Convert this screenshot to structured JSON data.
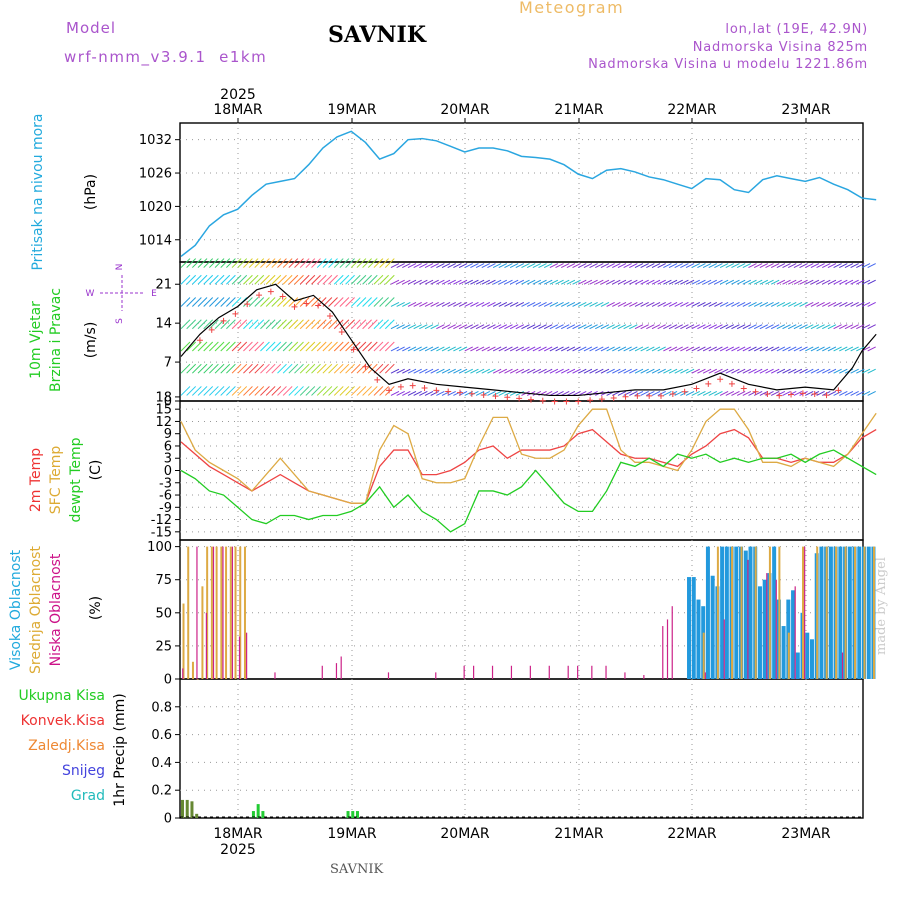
{
  "header": {
    "model_label": "Model",
    "model_name": "wrf-nmm_v3.9.1  e1km",
    "station": "SAVNIK",
    "title": "Meteogram",
    "lonlat": "lon,lat (19E, 42.9N)",
    "altitude": "Nadmorska Visina 825m",
    "model_altitude": "Nadmorska Visina u modelu 1221.86m",
    "footer_station": "SAVNIK",
    "credit": "made by Angel"
  },
  "colors": {
    "pressure": "#2aa6e0",
    "label_cyan": "#22aadd",
    "label_green": "#22cc22",
    "label_red": "#ee3333",
    "label_orange": "#ee8833",
    "label_gold": "#ddaa33",
    "label_magenta": "#cc1188",
    "label_purple": "#9933cc",
    "label_blue": "#4444dd",
    "label_teal": "#22bbbb",
    "credit": "#cccccc"
  },
  "time_axis": {
    "year": "2025",
    "days": [
      "18MAR",
      "19MAR",
      "20MAR",
      "21MAR",
      "22MAR",
      "23MAR"
    ]
  },
  "chart_data": [
    {
      "id": "pressure",
      "type": "line",
      "ylabel": "Pritisak na nivou mora",
      "unit": "(hPa)",
      "ylim": [
        1010,
        1035
      ],
      "yticks": [
        1014,
        1020,
        1026,
        1032
      ],
      "grid": true,
      "x_hours": [
        0,
        3,
        6,
        9,
        12,
        15,
        18,
        21,
        24,
        27,
        30,
        33,
        36,
        39,
        42,
        45,
        48,
        51,
        54,
        57,
        60,
        63,
        66,
        69,
        72,
        75,
        78,
        81,
        84,
        87,
        90,
        93,
        96,
        99,
        102,
        105,
        108,
        111,
        114,
        117,
        120,
        123,
        126,
        129,
        132,
        135,
        138,
        141,
        144,
        147
      ],
      "values": [
        1011,
        1013,
        1016.5,
        1018.5,
        1019.5,
        1022,
        1024,
        1024.5,
        1025,
        1027.5,
        1030.5,
        1032.5,
        1033.5,
        1031.5,
        1028.5,
        1029.5,
        1032,
        1032.2,
        1031.8,
        1030.8,
        1029.8,
        1030.5,
        1030.5,
        1030,
        1029,
        1028.8,
        1028.5,
        1027.5,
        1025.8,
        1025,
        1026.5,
        1026.8,
        1026.2,
        1025.3,
        1024.8,
        1024,
        1023.2,
        1025,
        1024.8,
        1023,
        1022.5,
        1024.8,
        1025.5,
        1025,
        1024.5,
        1025.2,
        1024,
        1023,
        1021.5,
        1021.2
      ]
    },
    {
      "id": "wind",
      "type": "line",
      "ylabel_1": "10m Vjetar",
      "ylabel_2": "Brzina i Pravac",
      "unit": "(m/s)",
      "compass": {
        "n": "N",
        "s": "S",
        "e": "E",
        "w": "W"
      },
      "ylim": [
        0,
        25
      ],
      "yticks": [
        0,
        7,
        14,
        21
      ],
      "grid": true,
      "series": [
        {
          "role": "wind_speed",
          "x_hours": [
            0,
            4,
            8,
            12,
            16,
            20,
            24,
            28,
            32,
            36,
            40,
            44,
            48,
            54,
            60,
            66,
            72,
            78,
            84,
            90,
            96,
            102,
            108,
            114,
            120,
            126,
            132,
            138,
            142,
            144,
            147
          ],
          "values": [
            8,
            12,
            15,
            17,
            20,
            21,
            18,
            19,
            16,
            11,
            6,
            3,
            4,
            3,
            2.5,
            2,
            1.5,
            1,
            1,
            1.5,
            2,
            2,
            3,
            5,
            3,
            2,
            2.5,
            2,
            6,
            9,
            12
          ]
        }
      ]
    },
    {
      "id": "temperature",
      "type": "line",
      "ylabel_1": "2m Temp",
      "ylabel_2": "SFC Temp",
      "ylabel_3": "dewpt Temp",
      "unit": "(C)",
      "ylim": [
        -17,
        17
      ],
      "yticks": [
        -15,
        -12,
        -9,
        -6,
        -3,
        0,
        3,
        6,
        9,
        12,
        15,
        18
      ],
      "grid": true,
      "series": [
        {
          "role": "2m_temp",
          "x_hours": [
            0,
            3,
            6,
            9,
            12,
            15,
            18,
            21,
            24,
            27,
            30,
            33,
            36,
            39,
            42,
            45,
            48,
            51,
            54,
            57,
            60,
            63,
            66,
            69,
            72,
            75,
            78,
            81,
            84,
            87,
            90,
            93,
            96,
            99,
            102,
            105,
            108,
            111,
            114,
            117,
            120,
            123,
            126,
            129,
            132,
            135,
            138,
            141,
            144,
            147
          ],
          "values": [
            7,
            4,
            1,
            -1,
            -3,
            -5,
            -3,
            -1,
            -3,
            -5,
            -6,
            -7,
            -8,
            -8,
            1,
            5,
            5,
            -1,
            -1,
            0,
            2,
            5,
            6,
            3,
            5,
            5,
            5,
            6,
            9,
            10,
            7,
            4,
            3,
            3,
            2,
            1,
            4,
            6,
            9,
            10,
            8,
            3,
            3,
            2,
            3,
            2,
            2,
            4,
            8,
            10
          ]
        },
        {
          "role": "sfc_temp",
          "x_hours": [
            0,
            3,
            6,
            9,
            12,
            15,
            18,
            21,
            24,
            27,
            30,
            33,
            36,
            39,
            42,
            45,
            48,
            51,
            54,
            57,
            60,
            63,
            66,
            69,
            72,
            75,
            78,
            81,
            84,
            87,
            90,
            93,
            96,
            99,
            102,
            105,
            108,
            111,
            114,
            117,
            120,
            123,
            126,
            129,
            132,
            135,
            138,
            141,
            144,
            147
          ],
          "values": [
            12,
            5,
            2,
            0,
            -2,
            -5,
            -1,
            3,
            -1,
            -5,
            -6,
            -7,
            -8,
            -8,
            5,
            11,
            9,
            -2,
            -3,
            -3,
            -2,
            6,
            13,
            13,
            4,
            3,
            3,
            5,
            11,
            15,
            15,
            5,
            2,
            2,
            1,
            0,
            5,
            12,
            15,
            15,
            10,
            2,
            2,
            1,
            3,
            2,
            1,
            4,
            9,
            14
          ]
        },
        {
          "role": "dewpt_temp",
          "x_hours": [
            0,
            3,
            6,
            9,
            12,
            15,
            18,
            21,
            24,
            27,
            30,
            33,
            36,
            39,
            42,
            45,
            48,
            51,
            54,
            57,
            60,
            63,
            66,
            69,
            72,
            75,
            78,
            81,
            84,
            87,
            90,
            93,
            96,
            99,
            102,
            105,
            108,
            111,
            114,
            117,
            120,
            123,
            126,
            129,
            132,
            135,
            138,
            141,
            144,
            147
          ],
          "values": [
            0,
            -2,
            -5,
            -6,
            -9,
            -12,
            -13,
            -11,
            -11,
            -12,
            -11,
            -11,
            -10,
            -8,
            -4,
            -9,
            -6,
            -10,
            -12,
            -15,
            -13,
            -5,
            -5,
            -6,
            -4,
            0,
            -4,
            -8,
            -10,
            -10,
            -5,
            2,
            1,
            3,
            1,
            4,
            3,
            4,
            2,
            3,
            2,
            3,
            3,
            4,
            2,
            4,
            5,
            3,
            1,
            -1
          ]
        }
      ]
    },
    {
      "id": "cloud",
      "type": "bar",
      "ylabel_1": "Visoka Oblacnost",
      "ylabel_2": "Srednja Oblacnost",
      "ylabel_3": "Niska  Oblacnost",
      "unit": "(%)",
      "ylim": [
        0,
        105
      ],
      "yticks": [
        0,
        25,
        50,
        75,
        100
      ],
      "grid": true,
      "series": [
        {
          "role": "high",
          "x_hours": [
            107,
            108,
            109,
            110,
            111,
            112,
            113,
            114,
            115,
            116,
            117,
            118,
            119,
            120,
            121,
            122,
            123,
            124,
            125,
            126,
            127,
            128,
            129,
            130,
            131,
            132,
            133,
            134,
            135,
            136,
            137,
            138,
            139,
            140,
            141,
            142,
            143,
            144,
            145,
            146
          ],
          "values": [
            77,
            77,
            60,
            55,
            100,
            78,
            70,
            100,
            100,
            100,
            100,
            100,
            97,
            100,
            100,
            70,
            75,
            80,
            100,
            60,
            40,
            60,
            67,
            20,
            50,
            35,
            30,
            95,
            100,
            100,
            100,
            100,
            100,
            100,
            100,
            100,
            100,
            100,
            100,
            100
          ]
        },
        {
          "role": "mid",
          "x_hours": [
            0,
            1,
            2,
            3,
            4,
            5,
            6,
            7,
            8,
            9,
            10,
            11,
            12,
            13,
            110,
            113,
            116,
            118,
            121,
            124,
            126,
            128,
            131,
            134,
            136,
            138,
            140,
            142,
            144,
            146
          ],
          "values": [
            57,
            100,
            13,
            0,
            70,
            100,
            100,
            100,
            100,
            100,
            100,
            100,
            100,
            100,
            35,
            100,
            100,
            100,
            100,
            100,
            100,
            35,
            100,
            100,
            100,
            100,
            100,
            100,
            100,
            100
          ]
        },
        {
          "role": "low",
          "x_hours": [
            0.5,
            3.5,
            5.5,
            7,
            9,
            11,
            12.5,
            14,
            20,
            30,
            33,
            34,
            44,
            54,
            60,
            62,
            66,
            70,
            74,
            78,
            82,
            84,
            87,
            90,
            94,
            98,
            102,
            103,
            104,
            111,
            115,
            120,
            124,
            126,
            130,
            132,
            140
          ],
          "values": [
            8,
            100,
            50,
            100,
            100,
            100,
            32,
            35,
            5,
            10,
            12,
            17,
            5,
            5,
            10,
            10,
            10,
            10,
            10,
            10,
            10,
            10,
            10,
            10,
            5,
            3,
            40,
            45,
            55,
            5,
            45,
            90,
            80,
            75,
            70,
            100,
            20
          ]
        }
      ]
    },
    {
      "id": "precip",
      "type": "bar",
      "ylabel_1": "1hr Precip",
      "unit": "(mm)",
      "legend": [
        "Ukupna  Kisa",
        "Konvek.Kisa",
        "Zaledj.Kisa",
        "Snijeg",
        "Grad"
      ],
      "ylim": [
        0,
        1
      ],
      "yticks": [
        0,
        0.2,
        0.4,
        0.6,
        0.8
      ],
      "yticklabels": [
        "0",
        "0.2",
        "0.4",
        "0.6",
        "0.8"
      ],
      "grid": true,
      "x_hours": [
        0,
        1,
        2,
        3,
        15,
        16,
        17,
        35,
        36,
        37
      ],
      "values": [
        0.13,
        0.13,
        0.12,
        0.03,
        0.05,
        0.1,
        0.05,
        0.05,
        0.05,
        0.05
      ]
    }
  ]
}
